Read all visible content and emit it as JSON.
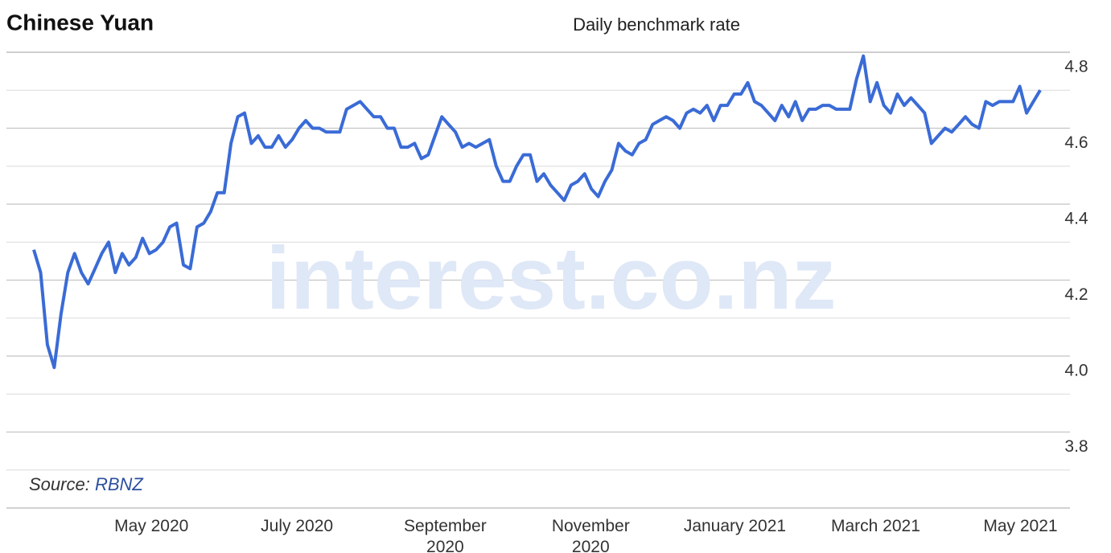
{
  "chart_data": {
    "type": "line",
    "title": "Chinese Yuan",
    "subtitle": "Daily benchmark rate",
    "watermark": "interest.co.nz",
    "source_label": "Source:",
    "source": "RBNZ",
    "xlim": [
      0,
      148
    ],
    "xticks": [
      {
        "value": 17.3,
        "label": "May 2020"
      },
      {
        "value": 38.7,
        "label": "July 2020"
      },
      {
        "value": 60.5,
        "label": "September 2020"
      },
      {
        "value": 81.9,
        "label": "November 2020"
      },
      {
        "value": 103.1,
        "label": "January 2021"
      },
      {
        "value": 123.8,
        "label": "March 2021"
      },
      {
        "value": 145.1,
        "label": "May 2021"
      }
    ],
    "ylim": [
      3.6,
      4.8
    ],
    "yticks": [
      3.8,
      {
        "value": 4,
        "label": "4.0"
      },
      4.2,
      4.4,
      4.6,
      4.8
    ],
    "grid": true,
    "minor_grid": true,
    "series": [
      {
        "color": "#3a6bd6",
        "values": [
          4.28,
          4.22,
          4.03,
          3.97,
          4.11,
          4.22,
          4.27,
          4.22,
          4.19,
          4.23,
          4.27,
          4.3,
          4.22,
          4.27,
          4.24,
          4.26,
          4.31,
          4.27,
          4.28,
          4.3,
          4.34,
          4.35,
          4.24,
          4.23,
          4.34,
          4.35,
          4.38,
          4.43,
          4.43,
          4.56,
          4.63,
          4.64,
          4.56,
          4.58,
          4.55,
          4.55,
          4.58,
          4.55,
          4.57,
          4.6,
          4.62,
          4.6,
          4.6,
          4.59,
          4.59,
          4.59,
          4.65,
          4.66,
          4.67,
          4.65,
          4.63,
          4.63,
          4.6,
          4.6,
          4.55,
          4.55,
          4.56,
          4.52,
          4.53,
          4.58,
          4.63,
          4.61,
          4.59,
          4.55,
          4.56,
          4.55,
          4.56,
          4.57,
          4.5,
          4.46,
          4.46,
          4.5,
          4.53,
          4.53,
          4.46,
          4.48,
          4.45,
          4.43,
          4.41,
          4.45,
          4.46,
          4.48,
          4.44,
          4.42,
          4.46,
          4.49,
          4.56,
          4.54,
          4.53,
          4.56,
          4.57,
          4.61,
          4.62,
          4.63,
          4.62,
          4.6,
          4.64,
          4.65,
          4.64,
          4.66,
          4.62,
          4.66,
          4.66,
          4.69,
          4.69,
          4.72,
          4.67,
          4.66,
          4.64,
          4.62,
          4.66,
          4.63,
          4.67,
          4.62,
          4.65,
          4.65,
          4.66,
          4.66,
          4.65,
          4.65,
          4.65,
          4.73,
          4.79,
          4.67,
          4.72,
          4.66,
          4.64,
          4.69,
          4.66,
          4.68,
          4.66,
          4.64,
          4.56,
          4.58,
          4.6,
          4.59,
          4.61,
          4.63,
          4.61,
          4.6,
          4.67,
          4.66,
          4.67,
          4.67,
          4.67,
          4.71,
          4.64,
          4.67,
          4.7
        ]
      }
    ]
  }
}
